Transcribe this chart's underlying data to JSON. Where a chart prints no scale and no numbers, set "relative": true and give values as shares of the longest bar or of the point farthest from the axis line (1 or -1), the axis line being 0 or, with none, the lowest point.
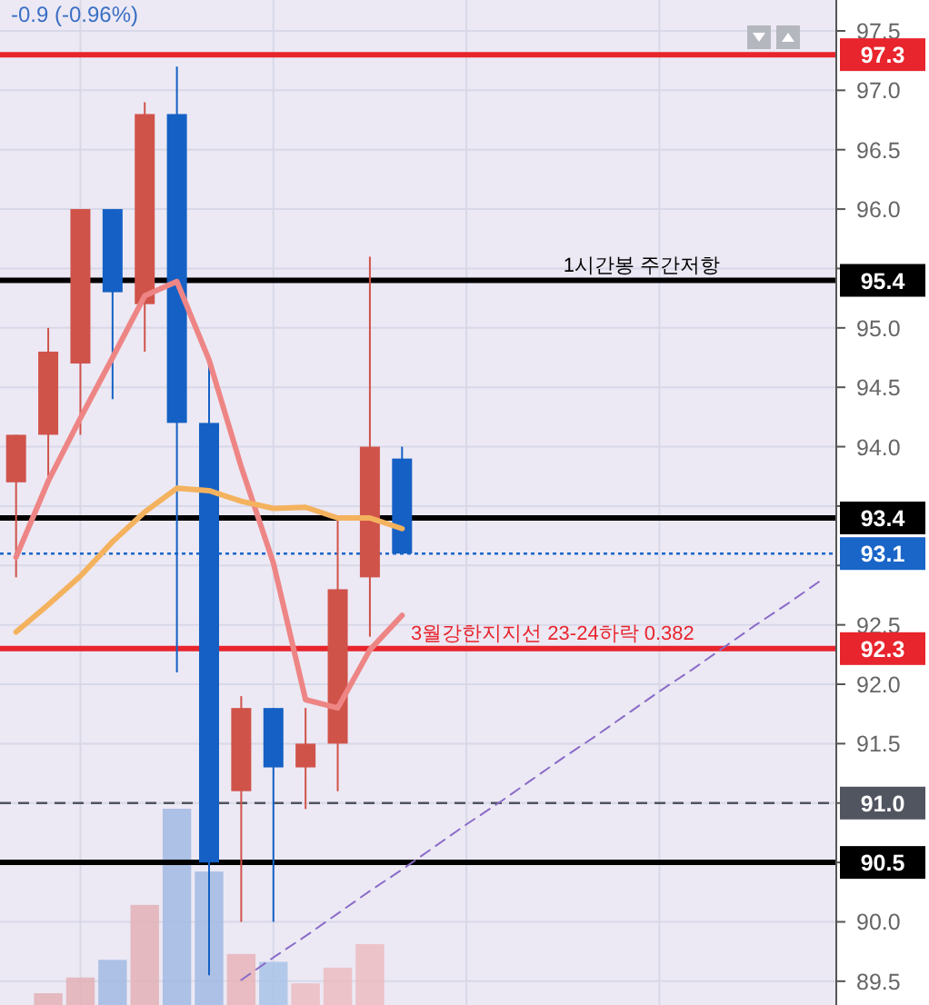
{
  "chart_data": [
    {
      "type": "candlestick",
      "categories": [
        null,
        null,
        null,
        null,
        null,
        null,
        null,
        null,
        null,
        null,
        null,
        null,
        null,
        null,
        null,
        null,
        null,
        null,
        null,
        null,
        null,
        null,
        null,
        null,
        null,
        null
      ],
      "ohlc": [
        [
          93.7,
          94.1,
          92.9,
          94.1
        ],
        [
          94.1,
          95.0,
          93.75,
          94.8
        ],
        [
          94.7,
          96.0,
          94.1,
          96.0
        ],
        [
          96.0,
          96.0,
          94.4,
          95.3
        ],
        [
          95.2,
          96.9,
          94.8,
          96.8
        ],
        [
          96.8,
          97.2,
          92.1,
          94.2
        ],
        [
          94.2,
          94.7,
          89.55,
          90.5
        ],
        [
          91.1,
          91.9,
          90.0,
          91.8
        ],
        [
          91.8,
          91.8,
          90.0,
          91.3
        ],
        [
          91.3,
          91.8,
          90.95,
          91.5
        ],
        [
          91.5,
          93.4,
          91.1,
          92.8
        ],
        [
          92.9,
          95.6,
          92.4,
          94.0
        ],
        [
          93.9,
          94.0,
          93.1,
          93.1
        ],
        null,
        null,
        null,
        null,
        null,
        null,
        null,
        null,
        null,
        null,
        null,
        null,
        null
      ],
      "colors": [
        "#d0534a",
        "#d0534a",
        "#d0534a",
        "#1560c4",
        "#d0534a",
        "#1560c4",
        "#1560c4",
        "#d0534a",
        "#1560c4",
        "#d0534a",
        "#d0534a",
        "#d0534a",
        "#1560c4",
        null,
        null,
        null,
        null,
        null,
        null,
        null,
        null,
        null,
        null,
        null,
        null,
        null
      ],
      "series": [
        {
          "type": "line",
          "color": "#ee8585",
          "values": [
            93.07,
            93.71,
            94.24,
            94.75,
            95.27,
            95.39,
            94.73,
            93.83,
            93.02,
            91.87,
            91.8,
            92.29,
            92.58,
            null,
            null,
            null,
            null,
            null,
            null,
            null,
            null,
            null,
            null,
            null,
            null,
            null
          ]
        },
        {
          "type": "line",
          "color": "#f4b25e",
          "values": [
            92.44,
            92.67,
            92.91,
            93.2,
            93.45,
            93.65,
            93.63,
            93.54,
            93.48,
            93.49,
            93.4,
            93.4,
            93.31,
            null,
            null,
            null,
            null,
            null,
            null,
            null,
            null,
            null,
            null,
            null,
            null,
            null
          ]
        },
        {
          "type": "line",
          "color": "#8a6cc8",
          "line_style": "dashed",
          "values": [
            null,
            null,
            null,
            null,
            null,
            null,
            null,
            89.51,
            89.7,
            89.88,
            90.07,
            90.26,
            90.44,
            90.63,
            90.82,
            91.0,
            91.19,
            91.38,
            91.56,
            91.75,
            91.94,
            92.12,
            92.31,
            92.5,
            92.68,
            92.87
          ]
        }
      ],
      "ylim": [
        89.3,
        97.76
      ],
      "yticks": [
        {
          "value": 89.5,
          "label": "89.5"
        },
        {
          "value": 90,
          "label": "90.0"
        },
        {
          "value": 90.5,
          "label": null
        },
        {
          "value": 91,
          "label": null
        },
        {
          "value": 91.5,
          "label": "91.5"
        },
        {
          "value": 92,
          "label": "92.0"
        },
        {
          "value": 92.5,
          "label": "92.5"
        },
        {
          "value": 93,
          "label": null
        },
        {
          "value": 93.5,
          "label": null
        },
        {
          "value": 94,
          "label": "94.0"
        },
        {
          "value": 94.5,
          "label": "94.5"
        },
        {
          "value": 95,
          "label": "95.0"
        },
        {
          "value": 95.5,
          "label": null
        },
        {
          "value": 96,
          "label": "96.0"
        },
        {
          "value": 96.5,
          "label": "96.5"
        },
        {
          "value": 97,
          "label": "97.0"
        },
        {
          "value": 97.5,
          "label": "97.5"
        }
      ],
      "tick_labels": "y",
      "grid": true,
      "ref_lines": [
        {
          "axis": "y",
          "value": 97.3,
          "label": "97.3",
          "color": "#e8242c"
        },
        {
          "axis": "y",
          "value": 95.4,
          "label": "95.4",
          "color": "#000000"
        },
        {
          "axis": "y",
          "value": 93.4,
          "label": "93.4",
          "color": "#000000"
        },
        {
          "axis": "y",
          "value": 93.1,
          "label": "93.1",
          "color": "#1a66c8",
          "line_style": "dotted"
        },
        {
          "axis": "y",
          "value": 92.3,
          "label": "92.3",
          "color": "#e8242c"
        },
        {
          "axis": "y",
          "value": 91.0,
          "label": "91.0",
          "color": "#505560",
          "line_style": "dashed"
        },
        {
          "axis": "y",
          "value": 90.5,
          "label": "90.5",
          "color": "#000000"
        }
      ],
      "annotations": [
        {
          "text": "1시간봉 주간저항",
          "y": 95.4
        },
        {
          "text": "3월강한지지선 23-24하락 0.382",
          "y": 92.3
        },
        "-0.9 (-0.96%)"
      ]
    },
    {
      "type": "bar",
      "relative": true,
      "categories": [
        null,
        null,
        null,
        null,
        null,
        null,
        null,
        null,
        null,
        null,
        null,
        null,
        null,
        null,
        null,
        null,
        null,
        null,
        null,
        null,
        null,
        null,
        null,
        null,
        null,
        null
      ],
      "values": [
        null,
        0.06,
        0.14,
        0.23,
        0.51,
        1,
        0.68,
        0.26,
        0.22,
        0.11,
        0.19,
        0.31,
        null,
        null,
        null,
        null,
        null,
        null,
        null,
        null,
        null,
        null,
        null,
        null,
        null,
        null
      ],
      "colors": [
        null,
        "#e3b0b6",
        "#e3b0b6",
        "#a2b9e2",
        "#e3b0b6",
        "#a2b9e2",
        "#a2b9e2",
        "#e8b4b8",
        "#a9c3e8",
        "#ebbcc0",
        "#ebbcc0",
        "#ebbcc0",
        null,
        null,
        null,
        null,
        null,
        null,
        null,
        null,
        null,
        null,
        null,
        null,
        null,
        null
      ]
    }
  ]
}
